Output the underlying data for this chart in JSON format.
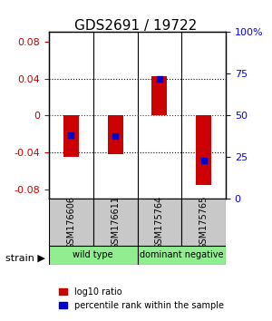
{
  "title": "GDS2691 / 19722",
  "samples": [
    "GSM176606",
    "GSM176611",
    "GSM175764",
    "GSM175765"
  ],
  "log10_ratio": [
    -0.045,
    -0.042,
    0.042,
    -0.075
  ],
  "percentile_rank": [
    0.37,
    0.36,
    0.75,
    0.2
  ],
  "groups": [
    {
      "name": "wild type",
      "samples": [
        0,
        1
      ],
      "color": "#90EE90"
    },
    {
      "name": "dominant negative",
      "samples": [
        2,
        3
      ],
      "color": "#90EE90"
    }
  ],
  "group_colors": [
    "#90EE90",
    "#90EE90"
  ],
  "ylim": [
    -0.09,
    0.09
  ],
  "yticks_left": [
    -0.08,
    -0.04,
    0,
    0.04,
    0.08
  ],
  "yticks_right": [
    0,
    25,
    50,
    75,
    100
  ],
  "bar_color_red": "#CC0000",
  "bar_color_blue": "#0000CC",
  "zero_line_color": "#CC0000",
  "grid_color": "#000000",
  "label_log10": "log10 ratio",
  "label_pct": "percentile rank within the sample",
  "strain_label": "strain",
  "title_fontsize": 11,
  "tick_fontsize": 8,
  "sample_fontsize": 7,
  "legend_fontsize": 8
}
